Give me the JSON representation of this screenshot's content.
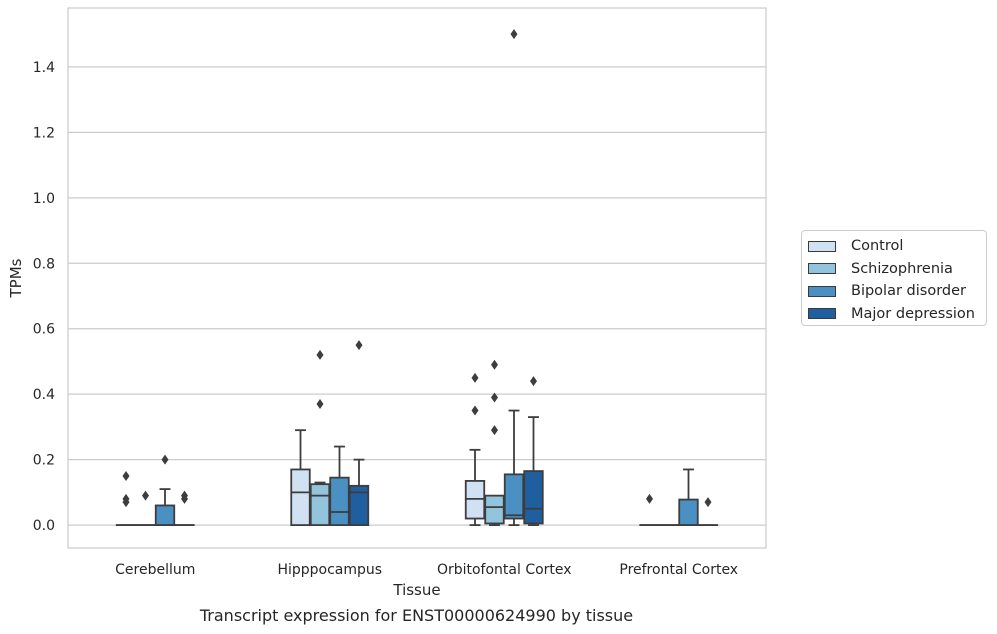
{
  "chart_data": {
    "type": "box",
    "title": "",
    "xlabel": "Tissue",
    "ylabel": "TPMs",
    "caption": "Transcript expression for ENST00000624990 by tissue",
    "ylim": [
      -0.07,
      1.58
    ],
    "yticks": [
      "0.0",
      "0.2",
      "0.4",
      "0.6",
      "0.8",
      "1.0",
      "1.2",
      "1.4"
    ],
    "ytick_values": [
      0,
      0.2,
      0.4,
      0.6,
      0.8,
      1.0,
      1.2,
      1.4
    ],
    "grid": "horizontal",
    "legend_position": "right",
    "categories": [
      "Cerebellum",
      "Hipppocampus",
      "Orbitofontal Cortex",
      "Prefrontal Cortex"
    ],
    "series": [
      {
        "name": "Control",
        "color": "#cfe1f2",
        "boxes": [
          {
            "min": 0,
            "q1": 0,
            "median": 0,
            "q3": 0,
            "max": 0,
            "outliers": [
              0.15,
              0.08,
              0.07
            ]
          },
          {
            "min": 0,
            "q1": 0,
            "median": 0.1,
            "q3": 0.17,
            "max": 0.29,
            "outliers": []
          },
          {
            "min": 0,
            "q1": 0.02,
            "median": 0.08,
            "q3": 0.135,
            "max": 0.23,
            "outliers": [
              0.45,
              0.35
            ]
          },
          {
            "min": 0,
            "q1": 0,
            "median": 0,
            "q3": 0,
            "max": 0,
            "outliers": [
              0.08
            ]
          }
        ]
      },
      {
        "name": "Schizophrenia",
        "color": "#93c4de",
        "boxes": [
          {
            "min": 0,
            "q1": 0,
            "median": 0,
            "q3": 0,
            "max": 0,
            "outliers": [
              0.09
            ]
          },
          {
            "min": 0,
            "q1": 0,
            "median": 0.09,
            "q3": 0.125,
            "max": 0.13,
            "outliers": [
              0.52,
              0.37
            ]
          },
          {
            "min": 0,
            "q1": 0.005,
            "median": 0.055,
            "q3": 0.09,
            "max": 0.09,
            "outliers": [
              0.49,
              0.39,
              0.29
            ]
          },
          {
            "min": 0,
            "q1": 0,
            "median": 0,
            "q3": 0,
            "max": 0,
            "outliers": []
          }
        ]
      },
      {
        "name": "Bipolar disorder",
        "color": "#4a90c2",
        "boxes": [
          {
            "min": 0,
            "q1": 0,
            "median": 0,
            "q3": 0.06,
            "max": 0.11,
            "outliers": [
              0.2
            ]
          },
          {
            "min": 0,
            "q1": 0,
            "median": 0.04,
            "q3": 0.145,
            "max": 0.24,
            "outliers": []
          },
          {
            "min": 0,
            "q1": 0.02,
            "median": 0.03,
            "q3": 0.155,
            "max": 0.35,
            "outliers": [
              1.5
            ]
          },
          {
            "min": 0,
            "q1": 0,
            "median": 0,
            "q3": 0.078,
            "max": 0.17,
            "outliers": []
          }
        ]
      },
      {
        "name": "Major depression",
        "color": "#1f5fa0",
        "boxes": [
          {
            "min": 0,
            "q1": 0,
            "median": 0,
            "q3": 0,
            "max": 0,
            "outliers": [
              0.09,
              0.08
            ]
          },
          {
            "min": 0,
            "q1": 0,
            "median": 0.1,
            "q3": 0.12,
            "max": 0.2,
            "outliers": [
              0.55
            ]
          },
          {
            "min": 0,
            "q1": 0.005,
            "median": 0.05,
            "q3": 0.165,
            "max": 0.33,
            "outliers": [
              0.44
            ]
          },
          {
            "min": 0,
            "q1": 0,
            "median": 0,
            "q3": 0,
            "max": 0,
            "outliers": [
              0.07
            ]
          }
        ]
      }
    ]
  }
}
